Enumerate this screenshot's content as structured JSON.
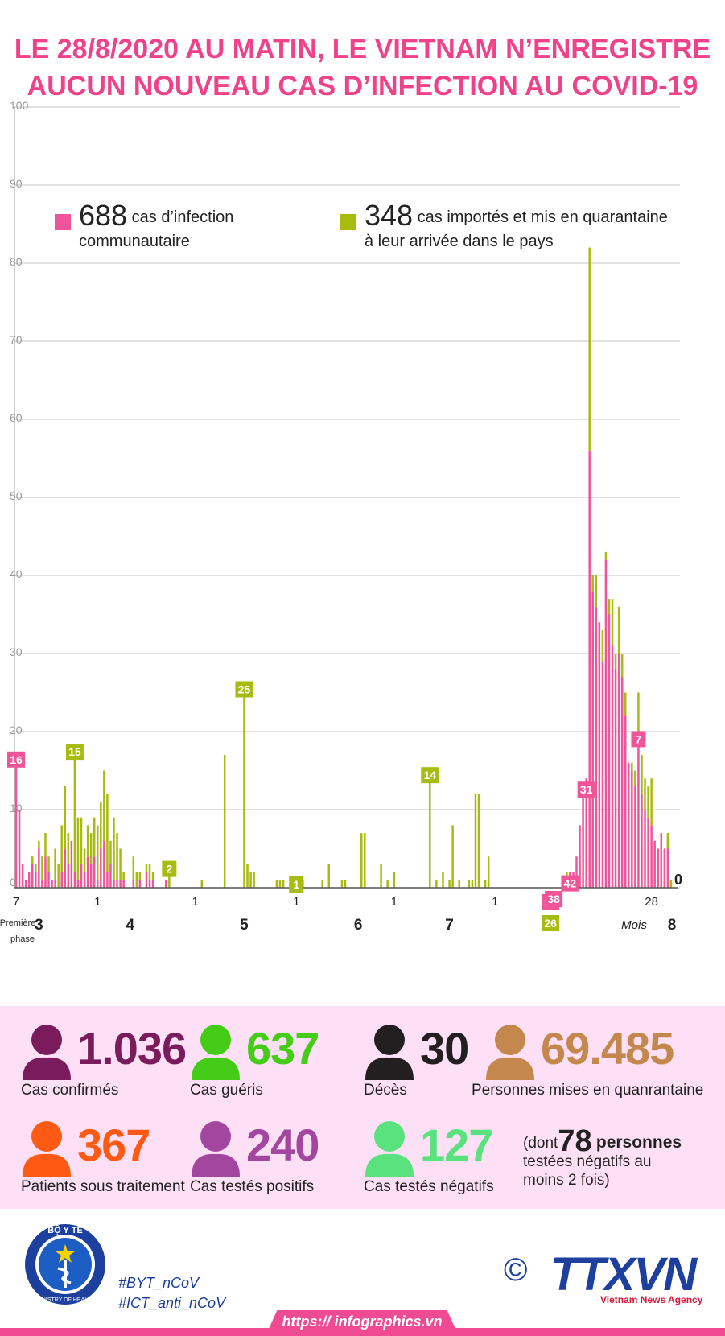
{
  "title_line1": "LE 28/8/2020 AU MATIN, LE VIETNAM N’ENREGISTRE",
  "title_line2": "AUCUN NOUVEAU CAS D’INFECTION AU COVID-19",
  "legend": {
    "community": {
      "count": "688",
      "line1": "cas d’infection",
      "line2": "communautaire",
      "color": "#f0559a"
    },
    "imported": {
      "count": "348",
      "line1": "cas importés et mis en quarantaine",
      "line2": "à leur arrivée dans le pays",
      "color": "#a8bb10"
    }
  },
  "chart_data": {
    "type": "bar",
    "stacked": true,
    "ylim": [
      0,
      100
    ],
    "yticks": [
      0,
      10,
      20,
      30,
      40,
      50,
      60,
      70,
      80,
      90,
      100
    ],
    "grid": true,
    "series": [
      {
        "name": "688 cas d’infection communautaire",
        "color": "#f0559a",
        "values": [
          16,
          10,
          3,
          1,
          2,
          3,
          2,
          5,
          1,
          4,
          2,
          1,
          1,
          0,
          2,
          5,
          3,
          6,
          2,
          1,
          3,
          2,
          4,
          3,
          4,
          1,
          5,
          6,
          2,
          3,
          1,
          1,
          1,
          1,
          0,
          0,
          1,
          0,
          1,
          0,
          2,
          1,
          1,
          0,
          0,
          0,
          1,
          0,
          0,
          0,
          0,
          0,
          0,
          0,
          0,
          0,
          0,
          0,
          0,
          0,
          0,
          0,
          0,
          0,
          0,
          0,
          0,
          0,
          0,
          0,
          0,
          0,
          0,
          0,
          0,
          0,
          0,
          0,
          0,
          0,
          0,
          0,
          0,
          0,
          0,
          0,
          0,
          0,
          0,
          0,
          0,
          0,
          0,
          0,
          0,
          0,
          0,
          0,
          0,
          0,
          0,
          0,
          0,
          0,
          0,
          0,
          0,
          0,
          0,
          0,
          0,
          0,
          0,
          0,
          0,
          0,
          0,
          0,
          0,
          0,
          0,
          0,
          0,
          0,
          0,
          0,
          0,
          0,
          0,
          0,
          0,
          0,
          0,
          0,
          0,
          0,
          0,
          0,
          0,
          0,
          0,
          0,
          0,
          0,
          0,
          0,
          0,
          0,
          0,
          0,
          0,
          0,
          0,
          0,
          0,
          0,
          0,
          0,
          0,
          0,
          0,
          0,
          0,
          0,
          0,
          0,
          0,
          0,
          1,
          1,
          2,
          2,
          4,
          8,
          12,
          14,
          56,
          38,
          36,
          34,
          29,
          42,
          35,
          31,
          28,
          30,
          27,
          22,
          16,
          15,
          13,
          18,
          12,
          10,
          9,
          8,
          6,
          5,
          7,
          5,
          5,
          0,
          0
        ]
      },
      {
        "name": "348 cas importés et mis en quarantaine à leur arrivée dans le pays",
        "color": "#a8bb10",
        "values": [
          0,
          0,
          0,
          0,
          0,
          1,
          0,
          1,
          0,
          0,
          0,
          0,
          0,
          0,
          0,
          0,
          0,
          0,
          0,
          0,
          0,
          0,
          0,
          0,
          0,
          0,
          0,
          0,
          0,
          0,
          0,
          0,
          0,
          0,
          0,
          0,
          0,
          0,
          0,
          0,
          0,
          0,
          0,
          0,
          0,
          0,
          0,
          0,
          0,
          0,
          0,
          0,
          0,
          0,
          0,
          0,
          0,
          0,
          0,
          0,
          0,
          0,
          0,
          0,
          0,
          0,
          0,
          0,
          0,
          0,
          0,
          0,
          0,
          0,
          0,
          0,
          0,
          0,
          0,
          0,
          0,
          0,
          0,
          0,
          0,
          0,
          0,
          0,
          0,
          0,
          0,
          0,
          0,
          0,
          0,
          0,
          0,
          0,
          0,
          0,
          0,
          0,
          0,
          0,
          0,
          0,
          0,
          0,
          0,
          0,
          0,
          0,
          0,
          0,
          0,
          0,
          0,
          0,
          0,
          0,
          0,
          0,
          0,
          0,
          0,
          0,
          0,
          0,
          0,
          0,
          0,
          0,
          0,
          0,
          0,
          0,
          0,
          0,
          0,
          0,
          0,
          0,
          0,
          0,
          0,
          0,
          0,
          0,
          0,
          0,
          0,
          0,
          0,
          0,
          0,
          0,
          0,
          0,
          0,
          0,
          0,
          0,
          0,
          0,
          0,
          0,
          0,
          0,
          0,
          1,
          0,
          0,
          0,
          0,
          0,
          0,
          26,
          2,
          4,
          0,
          4,
          1,
          2,
          6,
          2,
          6,
          3,
          3,
          0,
          1,
          2,
          7,
          5,
          4,
          4,
          6,
          0,
          0,
          0,
          0,
          2,
          1,
          0
        ]
      },
      {
        "name": "cas importés (début de période)",
        "color": "#a8bb10",
        "values": []
      }
    ],
    "import_spikes": [
      [
        6,
        1
      ],
      [
        8,
        3
      ],
      [
        9,
        3
      ],
      [
        10,
        2
      ],
      [
        12,
        4
      ],
      [
        13,
        3
      ],
      [
        14,
        6
      ],
      [
        15,
        8
      ],
      [
        16,
        4
      ],
      [
        18,
        15
      ],
      [
        19,
        8
      ],
      [
        20,
        6
      ],
      [
        21,
        3
      ],
      [
        22,
        4
      ],
      [
        23,
        4
      ],
      [
        24,
        5
      ],
      [
        25,
        7
      ],
      [
        26,
        6
      ],
      [
        27,
        9
      ],
      [
        28,
        10
      ],
      [
        29,
        3
      ],
      [
        30,
        8
      ],
      [
        31,
        6
      ],
      [
        32,
        4
      ],
      [
        33,
        1
      ],
      [
        36,
        3
      ],
      [
        37,
        2
      ],
      [
        38,
        1
      ],
      [
        40,
        1
      ],
      [
        41,
        2
      ],
      [
        42,
        1
      ],
      [
        47,
        2
      ],
      [
        57,
        1
      ],
      [
        64,
        17
      ],
      [
        70,
        25
      ],
      [
        71,
        3
      ],
      [
        72,
        2
      ],
      [
        73,
        2
      ],
      [
        80,
        1
      ],
      [
        81,
        1
      ],
      [
        82,
        1
      ],
      [
        88,
        1
      ],
      [
        94,
        1
      ],
      [
        96,
        3
      ],
      [
        100,
        1
      ],
      [
        101,
        1
      ],
      [
        106,
        7
      ],
      [
        107,
        7
      ],
      [
        112,
        3
      ],
      [
        114,
        1
      ],
      [
        116,
        2
      ],
      [
        127,
        14
      ],
      [
        129,
        1
      ],
      [
        131,
        2
      ],
      [
        133,
        1
      ],
      [
        134,
        8
      ],
      [
        136,
        1
      ],
      [
        139,
        1
      ],
      [
        140,
        1
      ],
      [
        141,
        12
      ],
      [
        142,
        12
      ],
      [
        144,
        1
      ],
      [
        145,
        4
      ]
    ],
    "value_labels": [
      {
        "index": 0,
        "label": "16",
        "series": "community"
      },
      {
        "index": 18,
        "label": "15",
        "series": "imported"
      },
      {
        "index": 47,
        "label": "2",
        "series": "imported"
      },
      {
        "index": 70,
        "label": "25",
        "series": "imported"
      },
      {
        "index": 86,
        "label": "1",
        "series": "imported"
      },
      {
        "index": 127,
        "label": "14",
        "series": "imported"
      },
      {
        "index": 164,
        "label": "26",
        "series": "imported"
      },
      {
        "index": 164,
        "label": "56",
        "series": "community"
      },
      {
        "index": 165,
        "label": "38",
        "series": "community"
      },
      {
        "index": 170,
        "label": "42",
        "series": "community"
      },
      {
        "index": 175,
        "label": "31",
        "series": "community"
      },
      {
        "index": 191,
        "label": "7",
        "series": "community"
      },
      {
        "index": 195,
        "label": "0",
        "series": "community"
      }
    ],
    "day_ticks": [
      {
        "index": 0,
        "label": "7"
      },
      {
        "index": 25,
        "label": "1"
      },
      {
        "index": 55,
        "label": "1"
      },
      {
        "index": 86,
        "label": "1"
      },
      {
        "index": 116,
        "label": "1"
      },
      {
        "index": 147,
        "label": "1"
      },
      {
        "index": 195,
        "label": "28"
      }
    ],
    "month_labels": [
      {
        "index": 7,
        "label": "3"
      },
      {
        "index": 35,
        "label": "4"
      },
      {
        "index": 70,
        "label": "5"
      },
      {
        "index": 105,
        "label": "6"
      },
      {
        "index": 133,
        "label": "7"
      },
      {
        "index": 195,
        "label": "8"
      }
    ],
    "phase_label": [
      "Première",
      "phase"
    ],
    "month_axis_label": "Mois"
  },
  "stats": [
    {
      "value": "1.036",
      "label": "Cas confirmés",
      "color": "#7a1c5c"
    },
    {
      "value": "637",
      "label": "Cas guéris",
      "color": "#44cc16"
    },
    {
      "value": "30",
      "label": "Décès",
      "color": "#231f20"
    },
    {
      "value": "69.485",
      "label": "Personnes mises en quanrantaine",
      "color": "#c4884e"
    },
    {
      "value": "367",
      "label": "Patients sous traitement",
      "color": "#ff5a14"
    },
    {
      "value": "240",
      "label": "Cas testés positifs",
      "color": "#a3469f"
    },
    {
      "value": "127",
      "label": "Cas testés négatifs",
      "color": "#5ae27e"
    }
  ],
  "note": {
    "prefix": "(dont",
    "value": "78",
    "suffix": "personnes",
    "line2": "testées négatifs au",
    "line3": "moins 2 fois)"
  },
  "logo_text": {
    "ministry_top": "BỘ Y TẾ",
    "ministry_bottom": "MINISTRY OF HEALTH",
    "agency": "TTXVN",
    "agency_sub": "Vietnam News Agency"
  },
  "hashtags": [
    "#BYT_nCoV",
    "#ICT_anti_nCoV"
  ],
  "footer_url": "https:// infographics.vn",
  "copyright": "©"
}
